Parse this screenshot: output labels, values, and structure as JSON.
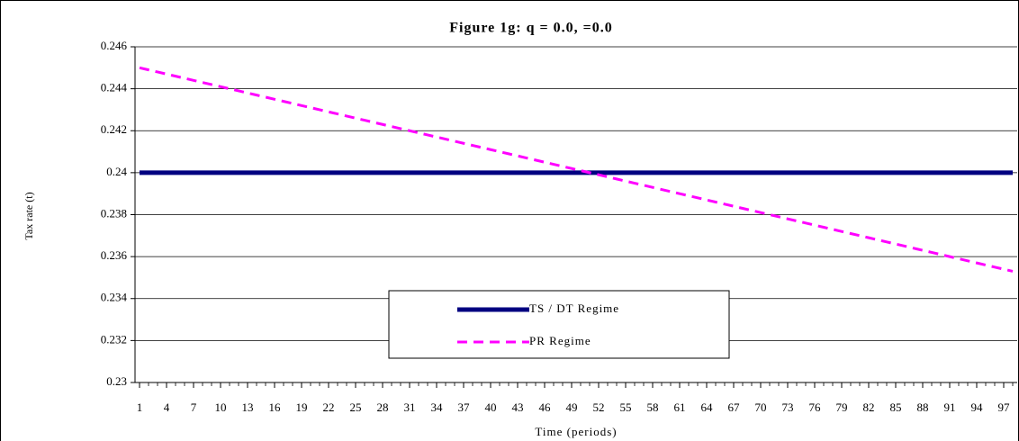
{
  "chart_data": {
    "type": "line",
    "title": "Figure 1g: q = 0.0,    =0.0",
    "x_label": "Time (periods)",
    "y_label": "Tax rate (t)",
    "x": [
      1,
      2,
      3,
      4,
      5,
      6,
      7,
      8,
      9,
      10,
      11,
      12,
      13,
      14,
      15,
      16,
      17,
      18,
      19,
      20,
      21,
      22,
      23,
      24,
      25,
      26,
      27,
      28,
      29,
      30,
      31,
      32,
      33,
      34,
      35,
      36,
      37,
      38,
      39,
      40,
      41,
      42,
      43,
      44,
      45,
      46,
      47,
      48,
      49,
      50,
      51,
      52,
      53,
      54,
      55,
      56,
      57,
      58,
      59,
      60,
      61,
      62,
      63,
      64,
      65,
      66,
      67,
      68,
      69,
      70,
      71,
      72,
      73,
      74,
      75,
      76,
      77,
      78,
      79,
      80,
      81,
      82,
      83,
      84,
      85,
      86,
      87,
      88,
      89,
      90,
      91,
      92,
      93,
      94,
      95,
      96,
      97,
      98
    ],
    "xlim": [
      0.5,
      98.5
    ],
    "xticks": [
      1,
      4,
      7,
      10,
      13,
      16,
      19,
      22,
      25,
      28,
      31,
      34,
      37,
      40,
      43,
      46,
      49,
      52,
      55,
      58,
      61,
      64,
      67,
      70,
      73,
      76,
      79,
      82,
      85,
      88,
      91,
      94,
      97
    ],
    "ylim": [
      0.23,
      0.246
    ],
    "yticks": [
      0.23,
      0.232,
      0.234,
      0.236,
      0.238,
      0.24,
      0.242,
      0.244,
      0.246
    ],
    "grid": true,
    "series": [
      {
        "name": "TS / DT Regime",
        "color": "#000080",
        "dash": "solid",
        "values": [
          0.24,
          0.24,
          0.24,
          0.24,
          0.24,
          0.24,
          0.24,
          0.24,
          0.24,
          0.24,
          0.24,
          0.24,
          0.24,
          0.24,
          0.24,
          0.24,
          0.24,
          0.24,
          0.24,
          0.24,
          0.24,
          0.24,
          0.24,
          0.24,
          0.24,
          0.24,
          0.24,
          0.24,
          0.24,
          0.24,
          0.24,
          0.24,
          0.24,
          0.24,
          0.24,
          0.24,
          0.24,
          0.24,
          0.24,
          0.24,
          0.24,
          0.24,
          0.24,
          0.24,
          0.24,
          0.24,
          0.24,
          0.24,
          0.24,
          0.24,
          0.24,
          0.24,
          0.24,
          0.24,
          0.24,
          0.24,
          0.24,
          0.24,
          0.24,
          0.24,
          0.24,
          0.24,
          0.24,
          0.24,
          0.24,
          0.24,
          0.24,
          0.24,
          0.24,
          0.24,
          0.24,
          0.24,
          0.24,
          0.24,
          0.24,
          0.24,
          0.24,
          0.24,
          0.24,
          0.24,
          0.24,
          0.24,
          0.24,
          0.24,
          0.24,
          0.24,
          0.24,
          0.24,
          0.24,
          0.24,
          0.24,
          0.24,
          0.24,
          0.24,
          0.24,
          0.24,
          0.24,
          0.24
        ]
      },
      {
        "name": "PR Regime",
        "color": "#ff00ff",
        "dash": "dashed",
        "values": [
          0.245,
          0.2449,
          0.2448,
          0.2447,
          0.2446,
          0.2445,
          0.2444,
          0.2443,
          0.2442,
          0.2441,
          0.244,
          0.2439,
          0.2438,
          0.2437,
          0.2436,
          0.2435,
          0.2434,
          0.2433,
          0.2432,
          0.2431,
          0.243,
          0.2429,
          0.2428,
          0.2427,
          0.2426,
          0.2425,
          0.2424,
          0.2423,
          0.2422,
          0.2421,
          0.242,
          0.2419,
          0.2418,
          0.2417,
          0.2416,
          0.2415,
          0.2414,
          0.2413,
          0.2412,
          0.2411,
          0.241,
          0.2409,
          0.2408,
          0.2407,
          0.2406,
          0.2405,
          0.2404,
          0.2403,
          0.2402,
          0.2401,
          0.24,
          0.2399,
          0.2398,
          0.2397,
          0.2396,
          0.2395,
          0.2394,
          0.2393,
          0.2392,
          0.2391,
          0.239,
          0.2389,
          0.2388,
          0.2387,
          0.2386,
          0.2385,
          0.2384,
          0.2383,
          0.2382,
          0.2381,
          0.238,
          0.2379,
          0.2378,
          0.2377,
          0.2376,
          0.2375,
          0.2374,
          0.2373,
          0.2372,
          0.2371,
          0.237,
          0.2369,
          0.2368,
          0.2367,
          0.2366,
          0.2365,
          0.2364,
          0.2363,
          0.2362,
          0.2361,
          0.236,
          0.2359,
          0.2358,
          0.2357,
          0.2356,
          0.2355,
          0.2354,
          0.2353
        ]
      }
    ]
  }
}
